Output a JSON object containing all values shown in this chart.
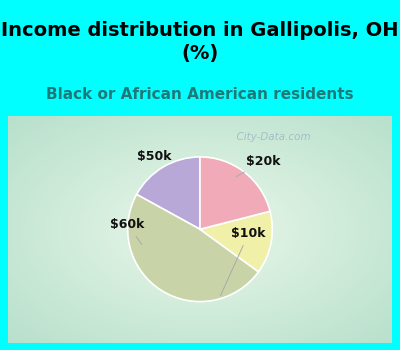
{
  "title": "Income distribution in Gallipolis, OH\n(%)",
  "subtitle": "Black or African American residents",
  "slices": [
    {
      "label": "$20k",
      "value": 17,
      "color": "#b8a8d8"
    },
    {
      "label": "$10k",
      "value": 48,
      "color": "#c8d4a8"
    },
    {
      "label": "$60k",
      "value": 14,
      "color": "#f0f0a8"
    },
    {
      "label": "$50k",
      "value": 21,
      "color": "#f0aab8"
    }
  ],
  "title_fontsize": 14,
  "subtitle_fontsize": 11,
  "label_fontsize": 9,
  "title_color": "#000000",
  "subtitle_color": "#207878",
  "header_bg": "#00ffff",
  "watermark": "  City-Data.com",
  "start_angle": 90
}
